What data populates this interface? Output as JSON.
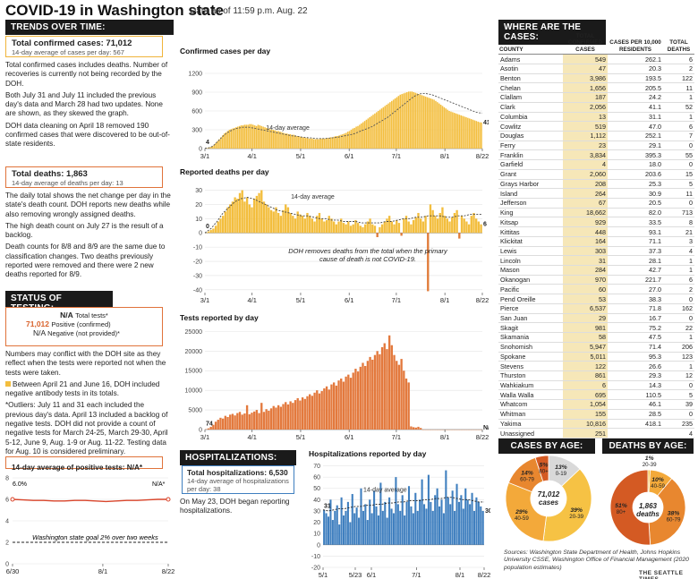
{
  "header": {
    "title": "COVID-19 in Washington state",
    "as_of": "Data as of 11:59 p.m. Aug. 22"
  },
  "trends": {
    "heading": "TRENDS OVER TIME:",
    "cases_label": "Total confirmed cases: 71,012",
    "cases_sub": "14-day average of cases per day: 567",
    "cases_notes": [
      "Total confirmed cases includes deaths. Number of recoveries is currently not being recorded by the DOH.",
      "Both July 31 and July 11 included the previous day's data and March 28 had two updates. None are shown, as they skewed the graph.",
      "DOH data cleaning on April 18 removed 190 confirmed cases that were discovered to be out-of-state residents."
    ],
    "deaths_label": "Total deaths: 1,863",
    "deaths_sub": "14-day average of deaths per day: 13",
    "deaths_notes": [
      "The daily total shows the net change per day in the state's death count. DOH reports new deaths while also removing wrongly assigned deaths.",
      "The high death count on July 27 is the result of a backlog.",
      "Death counts for 8/8 and 8/9 are the same due to classification changes. Two deaths previously reported were removed and there were 2 new deaths reported for 8/9."
    ]
  },
  "testing": {
    "heading": "STATUS OF TESTING:",
    "total_value": "N/A",
    "total_label": "Total tests*",
    "positive_value": "71,012",
    "positive_label": "Positive (confirmed)",
    "negative_value": "N/A",
    "negative_label": "Negative (not provided)*",
    "notes": [
      "Numbers may conflict with the DOH site as they reflect when the tests were reported not when the tests were taken.",
      "Between April 21 and June 16, DOH included negative antibody tests in its totals.",
      "*Outliers: July 11 and 31 each included the previous day's data. April 13 included a backlog of negative tests. DOH did not provide a count of negative tests for March 24-25, March 29-30, April 5-12, June 9, Aug. 1-9 or Aug. 11-22. Testing data for Aug. 10 is considered preliminary."
    ]
  },
  "positivity": {
    "label": "14-day average of positive tests: N/A*",
    "start_label": "6.0%",
    "end_label": "N/A*",
    "goal_label": "Washington state goal 2% over two weeks",
    "y_ticks": [
      "8",
      "6",
      "4",
      "2",
      "0"
    ],
    "x_ticks": [
      "6/30",
      "8/1",
      "8/22"
    ]
  },
  "hospitalizations": {
    "heading": "HOSPITALIZATIONS:",
    "total_label": "Total hospitalizations: 6,530",
    "sub": "14-day average of hospitalizations per day: 38",
    "note": "On May 23, DOH began reporting hospitalizations."
  },
  "where": {
    "heading": "WHERE ARE THE CASES:",
    "columns": [
      "COUNTY",
      "TOTAL CONFIRMED CASES",
      "CASES PER 10,000 RESIDENTS",
      "TOTAL DEATHS"
    ],
    "rows": [
      [
        "Adams",
        "549",
        "262.1",
        "6"
      ],
      [
        "Asotin",
        "47",
        "20.3",
        "2"
      ],
      [
        "Benton",
        "3,986",
        "193.5",
        "122"
      ],
      [
        "Chelan",
        "1,656",
        "205.5",
        "11"
      ],
      [
        "Clallam",
        "187",
        "24.2",
        "1"
      ],
      [
        "Clark",
        "2,056",
        "41.1",
        "52"
      ],
      [
        "Columbia",
        "13",
        "31.1",
        "1"
      ],
      [
        "Cowlitz",
        "519",
        "47.0",
        "6"
      ],
      [
        "Douglas",
        "1,112",
        "252.1",
        "7"
      ],
      [
        "Ferry",
        "23",
        "29.1",
        "0"
      ],
      [
        "Franklin",
        "3,834",
        "395.3",
        "55"
      ],
      [
        "Garfield",
        "4",
        "18.0",
        "0"
      ],
      [
        "Grant",
        "2,060",
        "203.6",
        "15"
      ],
      [
        "Grays Harbor",
        "208",
        "25.3",
        "5"
      ],
      [
        "Island",
        "264",
        "30.9",
        "11"
      ],
      [
        "Jefferson",
        "67",
        "20.5",
        "0"
      ],
      [
        "King",
        "18,662",
        "82.0",
        "713"
      ],
      [
        "Kitsap",
        "929",
        "33.5",
        "8"
      ],
      [
        "Kittitas",
        "448",
        "93.1",
        "21"
      ],
      [
        "Klickitat",
        "164",
        "71.1",
        "3"
      ],
      [
        "Lewis",
        "303",
        "37.3",
        "4"
      ],
      [
        "Lincoln",
        "31",
        "28.1",
        "1"
      ],
      [
        "Mason",
        "284",
        "42.7",
        "1"
      ],
      [
        "Okanogan",
        "970",
        "221.7",
        "6"
      ],
      [
        "Pacific",
        "60",
        "27.0",
        "2"
      ],
      [
        "Pend Oreille",
        "53",
        "38.3",
        "0"
      ],
      [
        "Pierce",
        "6,537",
        "71.8",
        "162"
      ],
      [
        "San Juan",
        "29",
        "16.7",
        "0"
      ],
      [
        "Skagit",
        "981",
        "75.2",
        "22"
      ],
      [
        "Skamania",
        "58",
        "47.5",
        "1"
      ],
      [
        "Snohomish",
        "5,947",
        "71.4",
        "206"
      ],
      [
        "Spokane",
        "5,011",
        "95.3",
        "123"
      ],
      [
        "Stevens",
        "122",
        "26.6",
        "1"
      ],
      [
        "Thurston",
        "861",
        "29.3",
        "12"
      ],
      [
        "Wahkiakum",
        "6",
        "14.3",
        "0"
      ],
      [
        "Walla Walla",
        "695",
        "110.5",
        "5"
      ],
      [
        "Whatcom",
        "1,054",
        "46.1",
        "39"
      ],
      [
        "Whitman",
        "155",
        "28.5",
        "0"
      ],
      [
        "Yakima",
        "10,816",
        "418.1",
        "235"
      ],
      [
        "Unassigned",
        "251",
        "",
        "4"
      ]
    ]
  },
  "cases_by_age": {
    "heading": "CASES BY AGE:",
    "center_value": "71,012",
    "center_label": "cases"
  },
  "deaths_by_age": {
    "heading": "DEATHS BY AGE:",
    "center_value": "1,863",
    "center_label": "deaths"
  },
  "source": "Sources: Washington State Department of Health, Johns Hopkins University CSSE, Washington Office of Financial Management (2020 population estimates)",
  "credit": "THE SEATTLE TIMES",
  "chart_data": [
    {
      "type": "bar",
      "title": "Confirmed cases per day",
      "x_ticks": [
        "3/1",
        "4/1",
        "5/1",
        "6/1",
        "7/1",
        "8/1",
        "8/22"
      ],
      "y_ticks": [
        0,
        300,
        600,
        900,
        1200
      ],
      "ylim": [
        0,
        1400
      ],
      "avg_label": "14-day average",
      "start_label": "4",
      "end_label": "417",
      "color": "#f3be3e",
      "avg_color": "#555555",
      "values": [
        4,
        8,
        15,
        25,
        40,
        60,
        90,
        120,
        150,
        180,
        210,
        240,
        260,
        280,
        300,
        310,
        320,
        330,
        340,
        350,
        360,
        370,
        370,
        380,
        380,
        380,
        390,
        390,
        380,
        370,
        360,
        380,
        370,
        360,
        350,
        340,
        330,
        320,
        310,
        300,
        300,
        290,
        280,
        280,
        270,
        260,
        250,
        240,
        240,
        230,
        230,
        220,
        220,
        210,
        200,
        200,
        190,
        180,
        180,
        170,
        170,
        160,
        160,
        160,
        150,
        150,
        150,
        150,
        160,
        160,
        160,
        160,
        170,
        170,
        180,
        180,
        190,
        200,
        200,
        210,
        220,
        230,
        240,
        250,
        270,
        280,
        300,
        320,
        330,
        350,
        360,
        380,
        400,
        420,
        440,
        460,
        480,
        500,
        520,
        540,
        560,
        580,
        600,
        620,
        640,
        660,
        680,
        700,
        720,
        740,
        760,
        780,
        800,
        820,
        840,
        860,
        870,
        880,
        890,
        900,
        910,
        910,
        910,
        900,
        890,
        880,
        870,
        860,
        850,
        840,
        830,
        820,
        810,
        800,
        790,
        780,
        760,
        740,
        720,
        700,
        680,
        660,
        640,
        620,
        600,
        590,
        580,
        570,
        560,
        550,
        540,
        530,
        520,
        510,
        500,
        490,
        480,
        470,
        460,
        450,
        440,
        430,
        420,
        417
      ],
      "avg_values": [
        4,
        10,
        25,
        60,
        110,
        160,
        210,
        250,
        280,
        300,
        320,
        330,
        340,
        340,
        340,
        330,
        320,
        310,
        300,
        290,
        280,
        270,
        260,
        250,
        240,
        230,
        220,
        210,
        200,
        200,
        190,
        180,
        180,
        170,
        170,
        160,
        160,
        160,
        160,
        165,
        170,
        175,
        180,
        190,
        200,
        210,
        220,
        230,
        250,
        270,
        290,
        310,
        330,
        350,
        380,
        410,
        440,
        470,
        500,
        540,
        580,
        620,
        660,
        700,
        740,
        780,
        820,
        850,
        870,
        880,
        880,
        870,
        860,
        840,
        820,
        800,
        780,
        760,
        740,
        720,
        700,
        680,
        660,
        640,
        620,
        600,
        580,
        570,
        567
      ]
    },
    {
      "type": "bar",
      "title": "Reported deaths per day",
      "x_ticks": [
        "3/1",
        "4/1",
        "5/1",
        "6/1",
        "7/1",
        "8/1",
        "8/22"
      ],
      "y_ticks": [
        30,
        20,
        10,
        0,
        -10,
        -20,
        -30,
        -40
      ],
      "ylim": [
        -42,
        36
      ],
      "avg_label": "14-day average",
      "start_label": "0",
      "end_label": "6",
      "annotation": "DOH removes deaths from the total when the primary cause of death is not COVID-19.",
      "color": "#f3be3e",
      "neg_color": "#e07b39",
      "values": [
        0,
        1,
        2,
        3,
        5,
        8,
        10,
        12,
        15,
        18,
        20,
        22,
        25,
        24,
        28,
        30,
        22,
        25,
        20,
        18,
        24,
        26,
        28,
        30,
        22,
        20,
        18,
        16,
        15,
        18,
        14,
        12,
        16,
        20,
        18,
        14,
        12,
        10,
        15,
        13,
        12,
        10,
        14,
        12,
        10,
        8,
        12,
        14,
        10,
        8,
        9,
        12,
        10,
        8,
        6,
        8,
        10,
        7,
        6,
        8,
        5,
        6,
        9,
        7,
        5,
        4,
        6,
        8,
        10,
        6,
        5,
        -3,
        4,
        6,
        8,
        10,
        12,
        8,
        6,
        9,
        7,
        -2,
        10,
        12,
        8,
        6,
        9,
        11,
        14,
        10,
        8,
        12,
        -41,
        20,
        16,
        12,
        10,
        14,
        18,
        12,
        10,
        8,
        11,
        14,
        16,
        -4,
        12,
        10,
        8,
        6,
        12,
        14,
        10,
        8,
        6
      ],
      "avg_values": [
        0,
        3,
        8,
        14,
        18,
        22,
        24,
        25,
        24,
        22,
        20,
        18,
        16,
        15,
        14,
        13,
        12,
        12,
        11,
        10,
        10,
        9,
        9,
        8,
        8,
        8,
        7,
        7,
        7,
        7,
        8,
        8,
        9,
        10,
        10,
        11,
        11,
        12,
        12,
        12,
        11,
        11,
        12,
        12,
        13,
        13,
        13
      ]
    },
    {
      "type": "bar",
      "title": "Tests reported by day",
      "x_ticks": [
        "3/1",
        "4/1",
        "5/1",
        "6/1",
        "7/1",
        "8/1",
        "8/22"
      ],
      "y_ticks": [
        0,
        5000,
        10000,
        15000,
        20000,
        25000
      ],
      "ylim": [
        0,
        26000
      ],
      "start_label": "74",
      "end_label": "N/A*",
      "color": "#e3793d",
      "values": [
        74,
        300,
        700,
        1200,
        2000,
        2500,
        3000,
        2800,
        3500,
        3200,
        3800,
        4000,
        3600,
        4200,
        4500,
        3800,
        4100,
        6200,
        3900,
        4300,
        4600,
        5000,
        4200,
        6800,
        4500,
        5200,
        4800,
        5400,
        6000,
        5600,
        6200,
        5800,
        6500,
        7000,
        6400,
        7200,
        6800,
        7500,
        8000,
        7400,
        8200,
        7800,
        8500,
        9000,
        8600,
        9400,
        10000,
        9200,
        9800,
        10500,
        11000,
        10200,
        11500,
        12000,
        11200,
        12500,
        13000,
        12200,
        13500,
        14000,
        13200,
        14500,
        15500,
        14800,
        16000,
        17000,
        16200,
        17500,
        18500,
        17800,
        19000,
        20000,
        19200,
        21000,
        22000,
        20500,
        24000,
        21500,
        19000,
        17500,
        16500,
        18000,
        15000,
        13000,
        12000,
        800,
        600,
        500,
        700,
        400,
        0,
        0,
        0,
        0,
        0,
        0,
        0,
        0,
        0,
        0,
        0,
        0,
        0,
        0,
        0,
        0,
        0,
        0,
        0,
        0,
        0,
        0,
        0,
        0,
        0
      ]
    },
    {
      "type": "bar",
      "title": "Hospitalizations reported by day",
      "x_ticks": [
        "5/1",
        "5/23",
        "6/1",
        "7/1",
        "8/1",
        "8/22"
      ],
      "y_ticks": [
        70,
        60,
        50,
        40,
        30,
        20,
        10,
        0,
        -10,
        -20
      ],
      "ylim": [
        -20,
        72
      ],
      "avg_label": "14-day average",
      "start_label": "31",
      "end_label": "30",
      "color": "#3f7fbf",
      "avg_color": "#222222",
      "values": [
        31,
        28,
        25,
        40,
        22,
        30,
        35,
        18,
        42,
        26,
        30,
        38,
        20,
        45,
        28,
        33,
        24,
        50,
        30,
        36,
        22,
        40,
        28,
        48,
        34,
        26,
        55,
        30,
        38,
        24,
        42,
        32,
        28,
        60,
        36,
        30,
        44,
        26,
        38,
        52,
        34,
        28,
        46,
        30,
        40,
        58,
        36,
        32,
        62,
        38,
        30,
        44,
        50,
        34,
        40,
        28,
        66,
        42,
        36,
        48,
        30,
        54,
        38,
        44,
        32,
        50,
        40,
        36,
        46,
        30,
        42,
        38,
        34,
        30
      ],
      "avg_values": [
        31,
        30,
        31,
        32,
        32,
        33,
        34,
        34,
        35,
        35,
        36,
        36,
        37,
        37,
        38,
        38,
        39,
        39,
        39,
        40,
        40,
        41,
        41,
        42,
        42,
        41,
        40,
        40,
        39,
        38,
        38
      ]
    },
    {
      "type": "line",
      "title": "14-day average of positive tests: N/A*",
      "x_ticks": [
        "6/30",
        "8/1",
        "8/22"
      ],
      "ylim": [
        0,
        8
      ],
      "y_ticks": [
        8,
        6,
        4,
        2,
        0
      ],
      "goal": 2,
      "values": [
        6.0,
        5.95,
        5.9,
        5.9,
        5.85,
        5.85,
        5.9,
        5.9,
        5.85,
        5.8,
        5.85,
        5.9,
        5.9,
        5.95,
        6.0,
        6.0
      ]
    },
    {
      "type": "pie",
      "title": "CASES BY AGE:",
      "slices": [
        {
          "label": "0-19",
          "value": 13,
          "color": "#d9d9d9"
        },
        {
          "label": "20-39",
          "value": 39,
          "color": "#f6c244"
        },
        {
          "label": "40-59",
          "value": 29,
          "color": "#f3a93a"
        },
        {
          "label": "60-79",
          "value": 14,
          "color": "#e8872f"
        },
        {
          "label": "80+",
          "value": 5,
          "color": "#d45a23"
        }
      ]
    },
    {
      "type": "pie",
      "title": "DEATHS BY AGE:",
      "slices": [
        {
          "label": "20-39",
          "value": 1,
          "color": "#f6c244"
        },
        {
          "label": "40-59",
          "value": 10,
          "color": "#f3a93a"
        },
        {
          "label": "60-79",
          "value": 38,
          "color": "#e8872f"
        },
        {
          "label": "80+",
          "value": 51,
          "color": "#d45a23"
        }
      ]
    }
  ]
}
